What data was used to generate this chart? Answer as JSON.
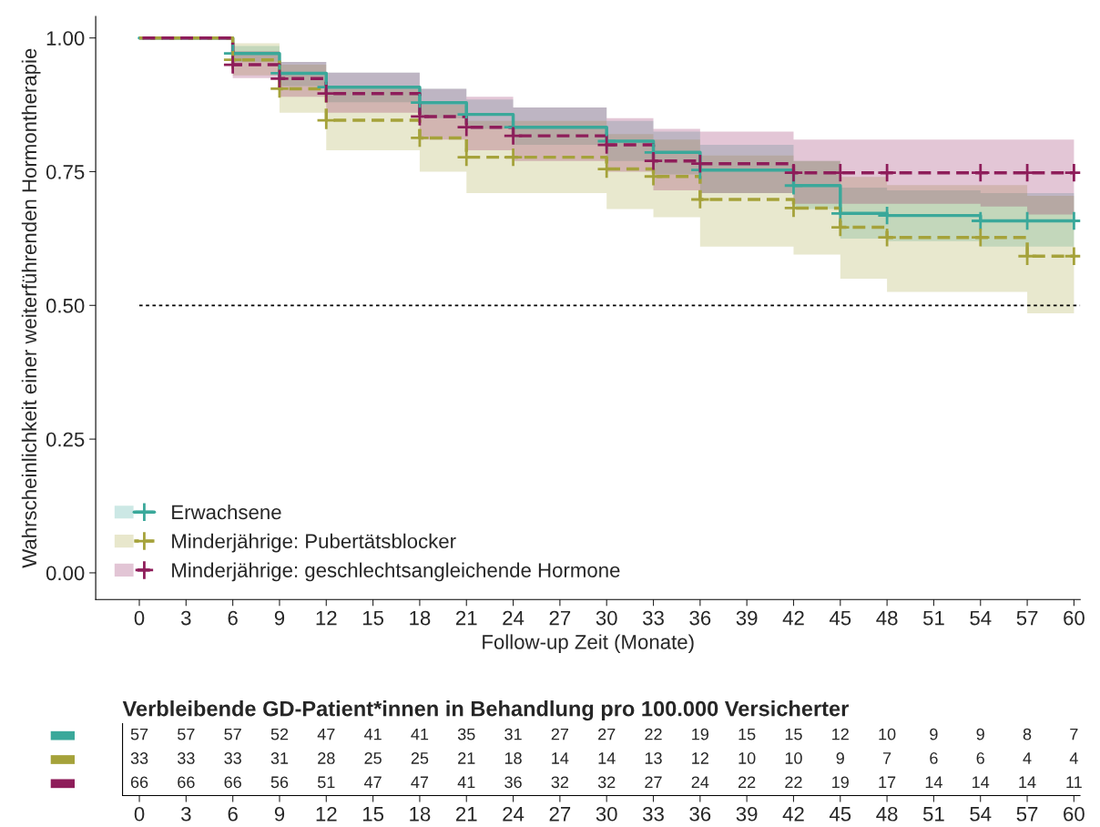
{
  "chart_data": [
    {
      "type": "step",
      "xlabel": "Follow-up Zeit (Monate)",
      "ylabel": "Wahrscheinlichkeit einer weiterführenden Hormontherapie",
      "xlim": [
        -2.8,
        60.4
      ],
      "xticks": [
        0,
        3,
        6,
        9,
        12,
        15,
        18,
        21,
        24,
        27,
        30,
        33,
        36,
        39,
        42,
        45,
        48,
        51,
        54,
        57,
        60
      ],
      "ylim": [
        -0.05,
        1.04
      ],
      "yticks": [
        {
          "value": 0,
          "label": "0.00"
        },
        {
          "value": 0.25,
          "label": "0.25"
        },
        {
          "value": 0.5,
          "label": "0.50"
        },
        {
          "value": 0.75,
          "label": "0.75"
        },
        {
          "value": 1,
          "label": "1.00"
        }
      ],
      "grid": false,
      "legend": "bottom left",
      "marker": "cross",
      "ref_lines": [
        {
          "axis": "y",
          "value": 0.5,
          "color": "#000000",
          "line_style": "dotted"
        }
      ],
      "series": [
        {
          "name": "Erwachsene",
          "color": "#3aa89a",
          "line_style": "solid",
          "x": [
            0,
            6,
            9,
            12,
            18,
            21,
            24,
            30,
            33,
            36,
            42,
            45,
            48,
            54,
            57,
            60
          ],
          "values": [
            1,
            0.971,
            0.934,
            0.908,
            0.879,
            0.857,
            0.833,
            0.807,
            0.786,
            0.753,
            0.724,
            0.672,
            0.668,
            0.658,
            0.658,
            0.658
          ],
          "lower": [
            1,
            0.955,
            0.91,
            0.88,
            0.85,
            0.83,
            0.8,
            0.77,
            0.745,
            0.71,
            0.68,
            0.625,
            0.62,
            0.61,
            0.61,
            0.61
          ],
          "upper": [
            1,
            0.985,
            0.955,
            0.935,
            0.905,
            0.885,
            0.87,
            0.845,
            0.825,
            0.8,
            0.77,
            0.72,
            0.715,
            0.71,
            0.71,
            0.71
          ]
        },
        {
          "name": "Minderjährige: Pubertätsblocker",
          "color": "#a5a23a",
          "line_style": "dashed",
          "x": [
            0,
            6,
            9,
            12,
            18,
            21,
            24,
            30,
            33,
            36,
            42,
            45,
            48,
            54,
            57,
            60
          ],
          "values": [
            1,
            0.959,
            0.905,
            0.846,
            0.813,
            0.777,
            0.777,
            0.755,
            0.741,
            0.698,
            0.682,
            0.646,
            0.627,
            0.627,
            0.592,
            0.592
          ],
          "lower": [
            1,
            0.93,
            0.86,
            0.79,
            0.75,
            0.71,
            0.71,
            0.68,
            0.665,
            0.61,
            0.595,
            0.55,
            0.525,
            0.525,
            0.485,
            0.485
          ],
          "upper": [
            1,
            0.99,
            0.95,
            0.905,
            0.875,
            0.845,
            0.845,
            0.82,
            0.81,
            0.78,
            0.77,
            0.74,
            0.725,
            0.725,
            0.705,
            0.705
          ]
        },
        {
          "name": "Minderjährige: geschlechtsangleichende Hormone",
          "color": "#8e1d5a",
          "line_style": "dashed",
          "x": [
            0,
            6,
            9,
            12,
            18,
            21,
            24,
            30,
            33,
            36,
            42,
            45,
            48,
            54,
            57,
            60
          ],
          "values": [
            1,
            0.95,
            0.924,
            0.896,
            0.853,
            0.833,
            0.817,
            0.8,
            0.77,
            0.765,
            0.748,
            0.748,
            0.748,
            0.748,
            0.748,
            0.748
          ],
          "lower": [
            1,
            0.925,
            0.89,
            0.86,
            0.81,
            0.79,
            0.77,
            0.75,
            0.715,
            0.71,
            0.69,
            0.69,
            0.69,
            0.685,
            0.67,
            0.67
          ],
          "upper": [
            1,
            0.975,
            0.955,
            0.935,
            0.905,
            0.89,
            0.87,
            0.85,
            0.83,
            0.825,
            0.81,
            0.81,
            0.81,
            0.81,
            0.81,
            0.81
          ]
        }
      ]
    },
    {
      "type": "heatmap",
      "title": "Verbleibende GD-Patient*innen in Behandlung pro 100.000 Versicherter",
      "categories": [
        "0",
        "3",
        "6",
        "9",
        "12",
        "15",
        "18",
        "21",
        "24",
        "27",
        "30",
        "33",
        "36",
        "39",
        "42",
        "45",
        "48",
        "51",
        "54",
        "57",
        "60"
      ],
      "y_categories": [
        null,
        null,
        null
      ],
      "colors": [
        "#3aa89a",
        "#a5a23a",
        "#8e1d5a"
      ],
      "data_labels": true,
      "cells": [
        [
          57,
          57,
          57,
          52,
          47,
          41,
          41,
          35,
          31,
          27,
          27,
          22,
          19,
          15,
          15,
          12,
          10,
          9,
          9,
          8,
          7
        ],
        [
          33,
          33,
          33,
          31,
          28,
          25,
          25,
          21,
          18,
          14,
          14,
          13,
          12,
          10,
          10,
          9,
          7,
          6,
          6,
          4,
          4
        ],
        [
          66,
          66,
          66,
          56,
          51,
          47,
          47,
          41,
          36,
          32,
          32,
          27,
          24,
          22,
          22,
          19,
          17,
          14,
          14,
          14,
          11
        ]
      ]
    }
  ]
}
